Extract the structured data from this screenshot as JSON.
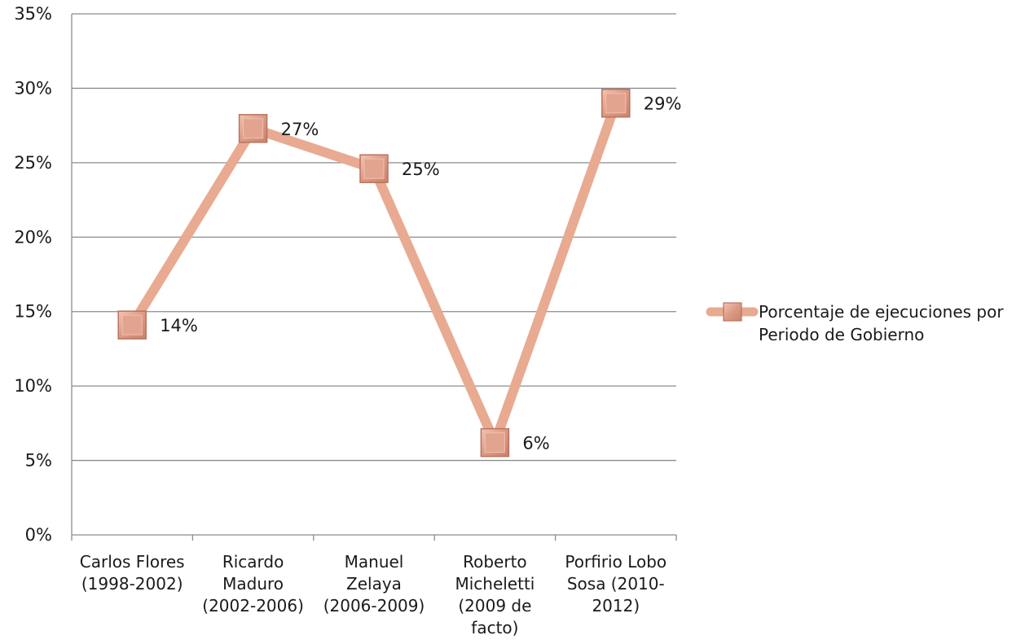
{
  "chart_data": {
    "type": "line",
    "categories": [
      [
        "Carlos Flores",
        "(1998-2002)"
      ],
      [
        "Ricardo",
        "Maduro",
        "(2002-2006)"
      ],
      [
        "Manuel",
        "Zelaya",
        "(2006-2009)"
      ],
      [
        "Roberto",
        "Micheletti",
        "(2009 de",
        "facto)"
      ],
      [
        "Porfirio Lobo",
        "Sosa (2010-",
        "2012)"
      ]
    ],
    "series": [
      {
        "name_lines": [
          "Porcentaje de ejecuciones por",
          "Periodo de Gobierno"
        ],
        "values": [
          14.1,
          27.3,
          24.6,
          6.2,
          29.0
        ],
        "data_labels": [
          "14%",
          "27%",
          "25%",
          "6%",
          "29%"
        ]
      }
    ],
    "ylim": [
      0,
      35
    ],
    "yticks": [
      "0%",
      "5%",
      "10%",
      "15%",
      "20%",
      "25%",
      "30%",
      "35%"
    ],
    "grid": true,
    "legend": "right",
    "colors": {
      "line": "#e8aa91",
      "marker_fill": "#e3a48f",
      "marker_edge": "#b9735e",
      "grid": "#8c8c8c"
    }
  }
}
